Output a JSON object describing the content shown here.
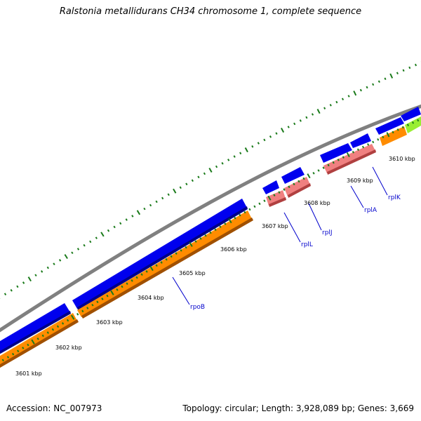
{
  "header": {
    "title": "Ralstonia metallidurans CH34 chromosome 1, complete sequence"
  },
  "footer": {
    "accession": "Accession: NC_007973",
    "summary": "Topology: circular; Length: 3,928,089 bp; Genes: 3,669"
  },
  "colors": {
    "backbone": "#808080",
    "cds_forward": "#0000ee",
    "cds_reverse_bar": "#ff8c00",
    "rna_bar": "#f08080",
    "other_feature": "#99ee33",
    "ticks": "#1a7a1a",
    "gene_label": "#0000cc"
  },
  "scale": {
    "tick_labels": [
      "3601 kbp",
      "3602 kbp",
      "3603 kbp",
      "3604 kbp",
      "3605 kbp",
      "3606 kbp",
      "3607 kbp",
      "3608 kbp",
      "3609 kbp",
      "3610 kbp"
    ]
  },
  "gene_labels": [
    "rpoB",
    "rplL",
    "rplJ",
    "rplA",
    "rplK"
  ]
}
